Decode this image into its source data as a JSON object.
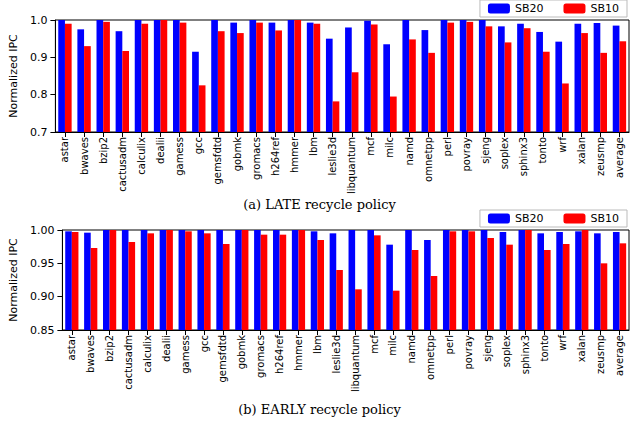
{
  "chart_data": [
    {
      "type": "bar",
      "title": "(a) LATE recycle policy",
      "y_label": "Normalized IPC",
      "categories": [
        "astar",
        "bwaves",
        "bzip2",
        "cactusadm",
        "calculix",
        "dealii",
        "gamess",
        "gcc",
        "gemsfdtd",
        "gobmk",
        "gromacs",
        "h264ref",
        "hmmer",
        "lbm",
        "leslie3d",
        "libquantum",
        "mcf",
        "milc",
        "namd",
        "omnetpp",
        "perl",
        "povray",
        "sjeng",
        "soplex",
        "sphinx3",
        "tonto",
        "wrf",
        "xalan",
        "zeusmp",
        "average"
      ],
      "series": [
        {
          "name": "SB20",
          "color": "#0000ff",
          "values": [
            1.0,
            0.975,
            1.0,
            0.97,
            1.0,
            1.0,
            1.0,
            0.915,
            1.0,
            0.993,
            1.0,
            0.993,
            1.0,
            0.993,
            0.95,
            0.98,
            0.998,
            0.935,
            1.0,
            0.973,
            1.0,
            1.0,
            1.0,
            0.983,
            0.99,
            0.968,
            0.942,
            0.99,
            0.992,
            0.985
          ]
        },
        {
          "name": "SB10",
          "color": "#ff0000",
          "values": [
            0.99,
            0.93,
            0.995,
            0.917,
            0.99,
            1.0,
            0.993,
            0.825,
            0.97,
            0.965,
            0.993,
            0.972,
            1.0,
            0.99,
            0.782,
            0.86,
            0.988,
            0.795,
            0.948,
            0.912,
            0.993,
            0.995,
            0.983,
            0.94,
            0.978,
            0.915,
            0.83,
            0.965,
            0.912,
            0.943
          ]
        }
      ],
      "ylim": [
        0.7,
        1.0
      ],
      "yticks": [
        0.7,
        0.8,
        0.9,
        {
          "value": 1,
          "label": "1.0"
        }
      ],
      "grid": false,
      "legend": "upper right"
    },
    {
      "type": "bar",
      "title": "(b) EARLY recycle policy",
      "y_label": "Normalized IPC",
      "categories": [
        "astar",
        "bwaves",
        "bzip2",
        "cactusadm",
        "calculix",
        "dealii",
        "gamess",
        "gcc",
        "gemsfdtd",
        "gobmk",
        "gromacs",
        "h264ref",
        "hmmer",
        "lbm",
        "leslie3d",
        "libquantum",
        "mcf",
        "milc",
        "namd",
        "omnetpp",
        "perl",
        "povray",
        "sjeng",
        "soplex",
        "sphinx3",
        "tonto",
        "wrf",
        "xalan",
        "zeusmp",
        "average"
      ],
      "series": [
        {
          "name": "SB20",
          "color": "#0000ff",
          "values": [
            0.998,
            0.996,
            1.0,
            1.0,
            1.0,
            1.0,
            1.0,
            1.0,
            1.0,
            1.0,
            1.0,
            1.0,
            1.0,
            0.998,
            0.995,
            1.0,
            1.0,
            0.978,
            1.0,
            0.985,
            1.0,
            1.0,
            1.0,
            0.997,
            1.0,
            0.995,
            0.997,
            0.998,
            0.995,
            0.997
          ]
        },
        {
          "name": "SB10",
          "color": "#ff0000",
          "values": [
            0.997,
            0.973,
            1.0,
            0.982,
            0.995,
            1.0,
            0.998,
            0.995,
            0.979,
            1.0,
            0.993,
            0.993,
            1.0,
            0.985,
            0.94,
            0.911,
            0.992,
            0.909,
            0.97,
            0.931,
            0.998,
            0.998,
            0.988,
            0.978,
            1.0,
            0.97,
            0.979,
            1.0,
            0.95,
            0.98
          ]
        }
      ],
      "ylim": [
        0.85,
        1.0
      ],
      "yticks": [
        0.85,
        {
          "value": 0.9,
          "label": "0.90"
        },
        0.95,
        {
          "value": 1,
          "label": "1.00"
        }
      ],
      "grid": false,
      "legend": "upper right"
    }
  ]
}
